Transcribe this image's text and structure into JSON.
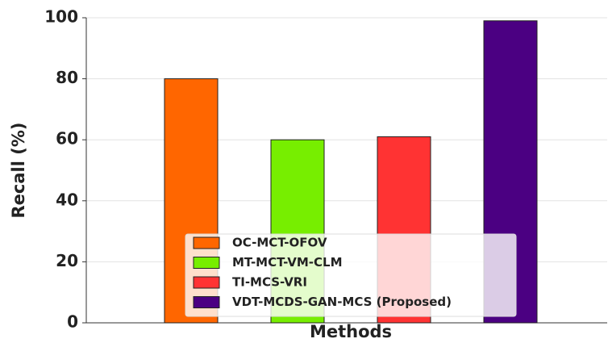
{
  "chart_data": {
    "type": "bar",
    "xlabel": "Methods",
    "ylabel": "Recall (%)",
    "series": [
      {
        "name": "OC-MCT-OFOV",
        "color": "#ff6600",
        "values": [
          80
        ]
      },
      {
        "name": "MT-MCT-VM-CLM",
        "color": "#77ee00",
        "values": [
          60
        ]
      },
      {
        "name": "TI-MCS-VRI",
        "color": "#ff3333",
        "values": [
          61
        ]
      },
      {
        "name": "VDT-MCDS-GAN-MCS (Proposed)",
        "color": "#4b0082",
        "values": [
          99
        ]
      }
    ],
    "ylim": [
      0,
      100
    ],
    "yticks": [
      0,
      20,
      40,
      60,
      80,
      100
    ],
    "grid": true,
    "legend": "lower center"
  }
}
